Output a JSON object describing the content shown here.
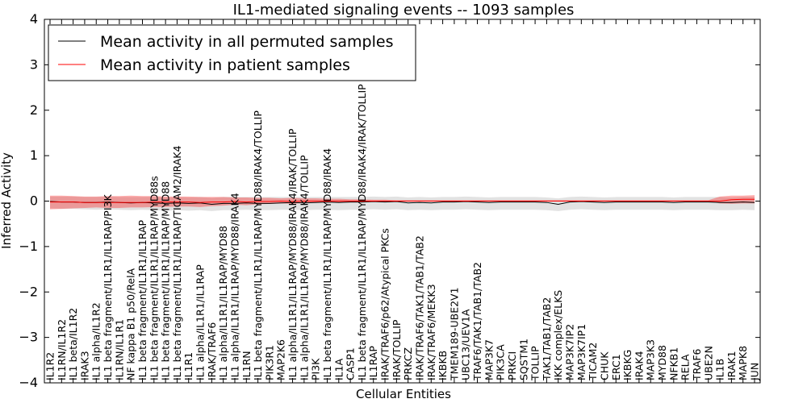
{
  "chart_data": {
    "type": "line",
    "title": "IL1-mediated signaling events -- 1093 samples",
    "xlabel": "Cellular Entities",
    "ylabel": "Inferred Activity",
    "ylim": [
      -4,
      4
    ],
    "yticks": [
      4,
      3,
      2,
      1,
      0,
      -1,
      -2,
      -3,
      -4
    ],
    "grid": false,
    "legend_position": "top-left",
    "categories": [
      "IL1R2",
      "IL1RN/IL1R2",
      "IL1 beta/IL1R2",
      "IRAK3",
      "IL1 alpha/IL1R2",
      "IL1 beta fragment/IL1R1/IL1RAP/PI3K",
      "IL1RN/IL1R1",
      "NF kappa B1 p50/RelA",
      "IL1 beta fragment/IL1R1/IL1RAP",
      "IL1 beta fragment/IL1R1/IL1RAP/MYD88s",
      "IL1 beta fragment/IL1R1/IL1RAP/MYD88",
      "IL1 beta fragment/IL1R1/IL1RAP/TICAM2/IRAK4",
      "IL1R1",
      "IL1 alpha/IL1R1/IL1RAP",
      "IRAK/TRAF6",
      "IL1 alpha/IL1R1/IL1RAP/MYD88",
      "IL1 alpha/IL1R1/IL1RAP/MYD88/IRAK4",
      "IL1RN",
      "IL1 beta fragment/IL1R1/IL1RAP/MYD88/IRAK4/TOLLIP",
      "PIK3R1",
      "MAP2K6",
      "IL1 alpha/IL1R1/IL1RAP/MYD88/IRAK4/IRAK/TOLLIP",
      "IL1 alpha/IL1R1/IL1RAP/MYD88/IRAK4/TOLLIP",
      "PI3K",
      "IL1 beta fragment/IL1R1/IL1RAP/MYD88/IRAK4",
      "IL1A",
      "CASP1",
      "IL1 beta fragment/IL1R1/IL1RAP/MYD88/IRAK4/IRAK/TOLLIP",
      "IL1RAP",
      "IRAK/TRAF6/p62/Atypical PKCs",
      "IRAK/TOLLIP",
      "PRKCZ",
      "IRAK/TRAF6/TAK1/TAB1/TAB2",
      "IRAK/TRAF6/MEKK3",
      "IKBKB",
      "TMEM189-UBE2V1",
      "UBC13/UEV1A",
      "TRAF6/TAK1/TAB1/TAB2",
      "MAP3K7",
      "PIK3CA",
      "PRKCI",
      "SQSTM1",
      "TOLLIP",
      "TAK1/TAB1/TAB2",
      "IKK complex/ELKS",
      "MAP3K7IP2",
      "MAP3K7IP1",
      "TICAM2",
      "CHUK",
      "ERC1",
      "IKBKG",
      "IRAK4",
      "MAP3K3",
      "MYD88",
      "NFKB1",
      "RELA",
      "TRAF6",
      "UBE2N",
      "IL1B",
      "IRAK1",
      "MAPK8",
      "JUN"
    ],
    "series": [
      {
        "name": "Mean activity in all permuted samples",
        "color": "#000000",
        "values": [
          -0.01,
          -0.02,
          -0.02,
          -0.03,
          -0.03,
          -0.02,
          -0.03,
          -0.04,
          -0.03,
          -0.04,
          -0.05,
          -0.04,
          -0.05,
          -0.04,
          -0.07,
          -0.05,
          -0.05,
          -0.04,
          -0.05,
          -0.05,
          -0.04,
          -0.03,
          -0.04,
          -0.03,
          -0.02,
          -0.03,
          -0.02,
          -0.02,
          -0.01,
          -0.02,
          -0.01,
          -0.04,
          -0.03,
          -0.04,
          -0.02,
          -0.02,
          -0.01,
          -0.02,
          -0.03,
          -0.02,
          -0.02,
          -0.02,
          -0.02,
          -0.03,
          -0.07,
          -0.02,
          -0.01,
          -0.02,
          -0.03,
          -0.02,
          -0.02,
          -0.02,
          -0.02,
          -0.02,
          -0.03,
          -0.02,
          -0.02,
          -0.02,
          -0.03,
          -0.03,
          -0.02,
          -0.03
        ],
        "lower": [
          -0.16,
          -0.17,
          -0.17,
          -0.18,
          -0.19,
          -0.18,
          -0.19,
          -0.2,
          -0.19,
          -0.2,
          -0.21,
          -0.2,
          -0.21,
          -0.2,
          -0.22,
          -0.2,
          -0.2,
          -0.19,
          -0.2,
          -0.2,
          -0.19,
          -0.19,
          -0.2,
          -0.19,
          -0.19,
          -0.2,
          -0.19,
          -0.19,
          -0.18,
          -0.19,
          -0.18,
          -0.2,
          -0.19,
          -0.2,
          -0.19,
          -0.19,
          -0.18,
          -0.19,
          -0.2,
          -0.19,
          -0.19,
          -0.19,
          -0.19,
          -0.2,
          -0.22,
          -0.19,
          -0.18,
          -0.19,
          -0.2,
          -0.19,
          -0.19,
          -0.19,
          -0.19,
          -0.19,
          -0.2,
          -0.19,
          -0.19,
          -0.19,
          -0.2,
          -0.2,
          -0.19,
          -0.2
        ],
        "upper": [
          0.1,
          0.1,
          0.1,
          0.09,
          0.09,
          0.1,
          0.09,
          0.09,
          0.09,
          0.09,
          0.08,
          0.09,
          0.08,
          0.09,
          0.07,
          0.09,
          0.09,
          0.09,
          0.09,
          0.09,
          0.09,
          0.09,
          0.09,
          0.09,
          0.09,
          0.09,
          0.09,
          0.09,
          0.1,
          0.09,
          0.1,
          0.08,
          0.09,
          0.08,
          0.09,
          0.09,
          0.1,
          0.09,
          0.08,
          0.09,
          0.09,
          0.09,
          0.09,
          0.08,
          0.06,
          0.09,
          0.1,
          0.09,
          0.08,
          0.09,
          0.09,
          0.09,
          0.09,
          0.09,
          0.08,
          0.09,
          0.09,
          0.09,
          0.09,
          0.08,
          0.09,
          0.09
        ]
      },
      {
        "name": "Mean activity in patient samples",
        "color": "#ff0000",
        "values": [
          -0.02,
          -0.02,
          -0.02,
          -0.03,
          -0.03,
          -0.03,
          -0.03,
          -0.03,
          -0.03,
          -0.02,
          -0.02,
          -0.02,
          -0.02,
          -0.03,
          -0.02,
          -0.02,
          -0.01,
          -0.02,
          -0.01,
          -0.01,
          0.0,
          -0.01,
          0.0,
          0.0,
          0.0,
          0.0,
          0.0,
          0.0,
          0.0,
          0.0,
          0.0,
          0.0,
          0.0,
          0.0,
          0.0,
          0.0,
          0.0,
          0.0,
          0.0,
          0.0,
          0.0,
          0.0,
          0.0,
          0.0,
          0.0,
          0.0,
          0.0,
          0.0,
          0.0,
          0.0,
          0.0,
          0.0,
          0.0,
          0.0,
          0.0,
          0.0,
          0.0,
          0.0,
          0.0,
          0.03,
          0.04,
          0.04
        ],
        "lower": [
          -0.18,
          -0.17,
          -0.16,
          -0.15,
          -0.14,
          -0.15,
          -0.15,
          -0.14,
          -0.14,
          -0.13,
          -0.13,
          -0.12,
          -0.12,
          -0.13,
          -0.11,
          -0.1,
          -0.08,
          -0.09,
          -0.07,
          -0.06,
          -0.05,
          -0.06,
          -0.04,
          -0.04,
          -0.03,
          -0.04,
          -0.03,
          -0.03,
          -0.02,
          -0.02,
          -0.01,
          -0.01,
          -0.01,
          -0.01,
          -0.01,
          -0.01,
          -0.01,
          -0.01,
          -0.01,
          -0.01,
          -0.01,
          -0.01,
          -0.01,
          -0.01,
          -0.01,
          -0.01,
          -0.01,
          -0.01,
          -0.01,
          -0.01,
          -0.01,
          -0.01,
          -0.01,
          -0.01,
          -0.01,
          -0.01,
          -0.01,
          -0.01,
          -0.05,
          -0.06,
          -0.05,
          -0.05
        ],
        "upper": [
          0.12,
          0.12,
          0.11,
          0.1,
          0.1,
          0.11,
          0.11,
          0.12,
          0.11,
          0.11,
          0.1,
          0.1,
          0.1,
          0.09,
          0.09,
          0.09,
          0.08,
          0.08,
          0.07,
          0.07,
          0.06,
          0.07,
          0.06,
          0.06,
          0.05,
          0.05,
          0.04,
          0.04,
          0.03,
          0.03,
          0.02,
          0.02,
          0.02,
          0.02,
          0.02,
          0.02,
          0.02,
          0.02,
          0.02,
          0.02,
          0.02,
          0.02,
          0.02,
          0.02,
          0.02,
          0.02,
          0.02,
          0.02,
          0.02,
          0.02,
          0.02,
          0.02,
          0.02,
          0.02,
          0.02,
          0.02,
          0.02,
          0.02,
          0.1,
          0.12,
          0.12,
          0.13
        ]
      }
    ]
  }
}
